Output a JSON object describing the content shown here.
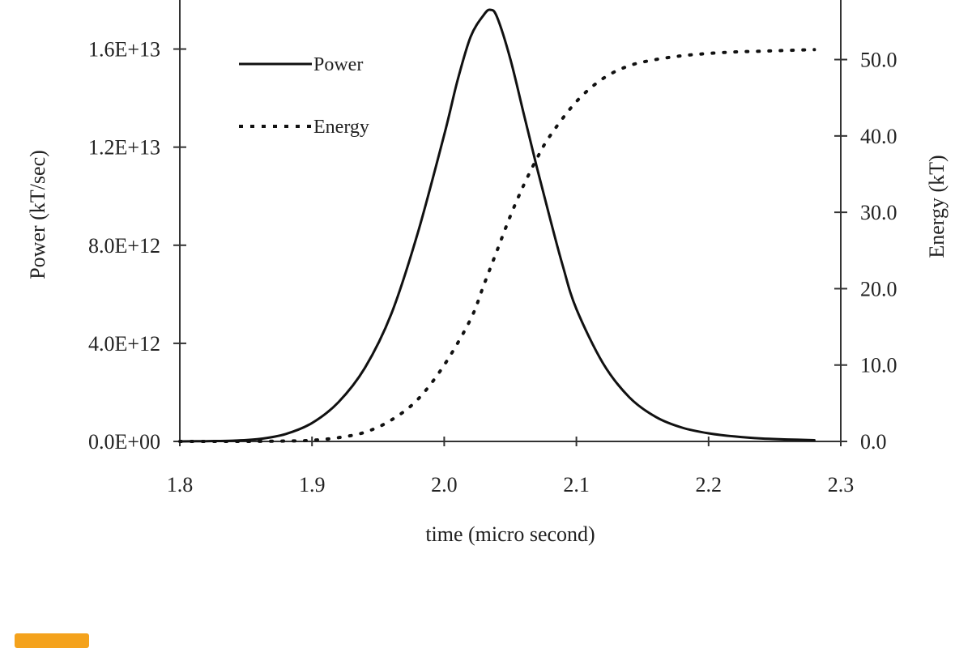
{
  "chart_data": {
    "type": "line",
    "title": "",
    "xlabel": "time (micro second)",
    "ylabel": "Power (kT/sec)",
    "y2label": "Energy (kT)",
    "xlim": [
      1.8,
      2.3
    ],
    "ylim": [
      0,
      18000000000000.0
    ],
    "y2lim": [
      0,
      57.8
    ],
    "x_ticks": [
      1.8,
      1.9,
      2.0,
      2.1,
      2.2,
      2.3
    ],
    "x_tick_labels": [
      "1.8",
      "1.9",
      "2.0",
      "2.1",
      "2.2",
      "2.3"
    ],
    "y_ticks": [
      0,
      4000000000000.0,
      8000000000000.0,
      12000000000000.0,
      16000000000000.0
    ],
    "y_tick_labels": [
      "0.0E+00",
      "4.0E+12",
      "8.0E+12",
      "1.2E+13",
      "1.6E+13"
    ],
    "y2_ticks": [
      0,
      10,
      20,
      30,
      40,
      50
    ],
    "y2_tick_labels": [
      "0.0",
      "10.0",
      "20.0",
      "30.0",
      "40.0",
      "50.0"
    ],
    "grid": false,
    "legend_position": "top-left",
    "series": [
      {
        "name": "Power",
        "axis": "left",
        "style": "solid",
        "x": [
          1.8,
          1.82,
          1.84,
          1.86,
          1.88,
          1.9,
          1.92,
          1.94,
          1.96,
          1.98,
          2.0,
          2.01,
          2.02,
          2.03,
          2.035,
          2.04,
          2.05,
          2.06,
          2.07,
          2.08,
          2.09,
          2.1,
          2.12,
          2.14,
          2.16,
          2.18,
          2.2,
          2.22,
          2.24,
          2.26,
          2.28
        ],
        "values": [
          0.0,
          10000000000.0,
          30000000000.0,
          100000000000.0,
          300000000000.0,
          750000000000.0,
          1600000000000.0,
          3000000000000.0,
          5200000000000.0,
          8500000000000.0,
          12500000000000.0,
          14700000000000.0,
          16500000000000.0,
          17400000000000.0,
          17600000000000.0,
          17300000000000.0,
          15600000000000.0,
          13400000000000.0,
          11200000000000.0,
          9100000000000.0,
          7100000000000.0,
          5400000000000.0,
          3200000000000.0,
          1800000000000.0,
          1000000000000.0,
          560000000000.0,
          330000000000.0,
          200000000000.0,
          120000000000.0,
          80000000000.0,
          50000000000.0
        ]
      },
      {
        "name": "Energy",
        "axis": "right",
        "style": "dotted",
        "x": [
          1.8,
          1.85,
          1.88,
          1.9,
          1.92,
          1.94,
          1.96,
          1.98,
          2.0,
          2.02,
          2.03,
          2.04,
          2.05,
          2.06,
          2.07,
          2.08,
          2.1,
          2.12,
          2.14,
          2.16,
          2.18,
          2.2,
          2.22,
          2.24,
          2.26,
          2.28
        ],
        "values": [
          0.0,
          0.0,
          0.05,
          0.15,
          0.5,
          1.2,
          2.8,
          5.5,
          10.0,
          16.0,
          20.5,
          25.0,
          29.5,
          33.5,
          37.0,
          40.0,
          44.5,
          47.5,
          49.2,
          50.0,
          50.5,
          50.8,
          51.0,
          51.1,
          51.2,
          51.3
        ]
      }
    ]
  },
  "colors": {
    "line": "#111111",
    "axis": "#333333",
    "watermark": "#f4a21c"
  }
}
